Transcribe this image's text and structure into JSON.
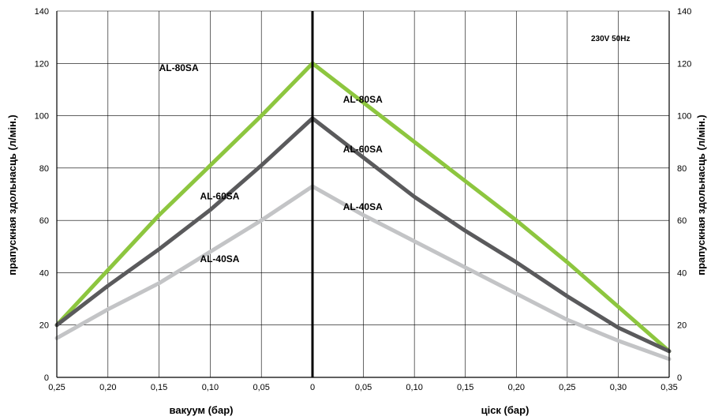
{
  "chart_data": {
    "type": "line",
    "note": "230V 50Hz",
    "xlabel_left": "вакуум (бар)",
    "xlabel_right": "ціск (бар)",
    "ylabel": "прапускная здольнасць (л/мін.)",
    "ylim": [
      0,
      140
    ],
    "y_ticks": [
      "0",
      "20",
      "40",
      "60",
      "80",
      "100",
      "120",
      "140"
    ],
    "x_ticks_left": [
      "0,25",
      "0,20",
      "0,15",
      "0,10",
      "0,05",
      "0"
    ],
    "x_ticks_right": [
      "0,05",
      "0,10",
      "0,15",
      "0,20",
      "0,25",
      "0,30",
      "0,35"
    ],
    "vacuum_range": [
      0.25,
      0
    ],
    "pressure_range": [
      0,
      0.35
    ],
    "grid": true,
    "series": [
      {
        "name": "AL-80SA",
        "color": "#8dc63f",
        "vacuum": [
          [
            0.25,
            20
          ],
          [
            0.2,
            41
          ],
          [
            0.15,
            62
          ],
          [
            0.1,
            81
          ],
          [
            0.05,
            100
          ],
          [
            0,
            120
          ]
        ],
        "pressure": [
          [
            0,
            120
          ],
          [
            0.05,
            105
          ],
          [
            0.1,
            90
          ],
          [
            0.15,
            75
          ],
          [
            0.2,
            60
          ],
          [
            0.25,
            44
          ],
          [
            0.3,
            27
          ],
          [
            0.35,
            10
          ]
        ],
        "label_vacuum": "AL-80SA",
        "label_pressure": "AL-80SA"
      },
      {
        "name": "AL-60SA",
        "color": "#5a5a5c",
        "vacuum": [
          [
            0.25,
            20
          ],
          [
            0.2,
            35
          ],
          [
            0.15,
            49
          ],
          [
            0.1,
            64
          ],
          [
            0.05,
            81
          ],
          [
            0,
            99
          ]
        ],
        "pressure": [
          [
            0,
            99
          ],
          [
            0.05,
            84
          ],
          [
            0.1,
            69
          ],
          [
            0.15,
            56
          ],
          [
            0.2,
            44
          ],
          [
            0.25,
            31
          ],
          [
            0.3,
            19
          ],
          [
            0.35,
            10
          ]
        ],
        "label_vacuum": "AL-60SA",
        "label_pressure": "AL-60SA"
      },
      {
        "name": "AL-40SA",
        "color": "#c3c4c6",
        "vacuum": [
          [
            0.25,
            15
          ],
          [
            0.2,
            26
          ],
          [
            0.15,
            36
          ],
          [
            0.1,
            48
          ],
          [
            0.05,
            60
          ],
          [
            0,
            73
          ]
        ],
        "pressure": [
          [
            0,
            73
          ],
          [
            0.05,
            62
          ],
          [
            0.1,
            52
          ],
          [
            0.15,
            42
          ],
          [
            0.2,
            32
          ],
          [
            0.25,
            22
          ],
          [
            0.3,
            14
          ],
          [
            0.35,
            7
          ]
        ],
        "label_vacuum": "AL-40SA",
        "label_pressure": "AL-40SA"
      }
    ]
  }
}
